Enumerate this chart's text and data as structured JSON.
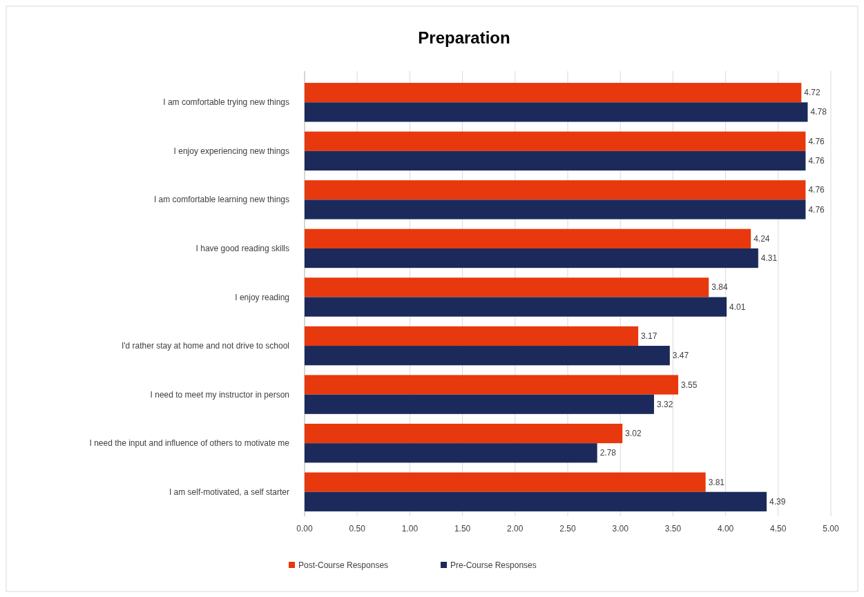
{
  "chart_data": {
    "type": "bar",
    "orientation": "horizontal",
    "title": "Preparation",
    "categories": [
      "I am comfortable trying new things",
      "I enjoy experiencing new things",
      "I am comfortable learning new things",
      "I have good reading skills",
      "I enjoy reading",
      "I'd rather stay at home and not drive to school",
      "I need to meet my instructor in person",
      "I need the input and influence of others to motivate me",
      "I am self-motivated, a self starter"
    ],
    "series": [
      {
        "name": "Post-Course Responses",
        "color": "#e8380d",
        "values": [
          4.72,
          4.76,
          4.76,
          4.24,
          3.84,
          3.17,
          3.55,
          3.02,
          3.81
        ]
      },
      {
        "name": "Pre-Course Responses",
        "color": "#1b2a5a",
        "values": [
          4.78,
          4.76,
          4.76,
          4.31,
          4.01,
          3.47,
          3.32,
          2.78,
          4.39
        ]
      }
    ],
    "xlim": [
      0,
      5
    ],
    "xticks": [
      {
        "value": 0,
        "label": "0.00"
      },
      {
        "value": 0.5,
        "label": "0.50"
      },
      {
        "value": 1,
        "label": "1.00"
      },
      {
        "value": 1.5,
        "label": "1.50"
      },
      {
        "value": 2,
        "label": "2.00"
      },
      {
        "value": 2.5,
        "label": "2.50"
      },
      {
        "value": 3,
        "label": "3.00"
      },
      {
        "value": 3.5,
        "label": "3.50"
      },
      {
        "value": 4,
        "label": "4.00"
      },
      {
        "value": 4.5,
        "label": "4.50"
      },
      {
        "value": 5,
        "label": "5.00"
      }
    ],
    "grid": "x",
    "legend": "bottom",
    "data_labels": true
  }
}
